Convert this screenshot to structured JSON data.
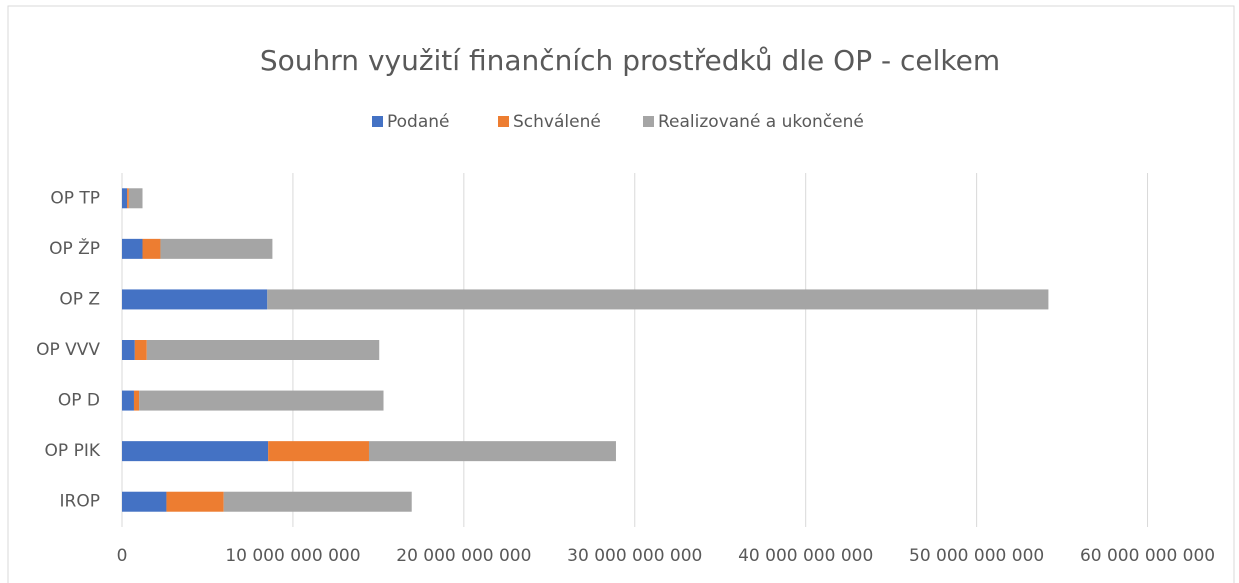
{
  "chart_data": {
    "type": "stacked-barh",
    "title": "Souhrn využití finančních prostředků dle OP - celkem",
    "categories": [
      "OP TP",
      "OP ŽP",
      "OP Z",
      "OP VVV",
      "OP D",
      "OP PIK",
      "IROP"
    ],
    "series": [
      {
        "name": "Podané",
        "color": "#4472c4",
        "values": [
          300000000,
          1200000000,
          8500000000,
          750000000,
          700000000,
          8550000000,
          2600000000
        ]
      },
      {
        "name": "Schválené",
        "color": "#ed7d31",
        "values": [
          100000000,
          1050000000,
          0,
          700000000,
          300000000,
          5900000000,
          3350000000
        ]
      },
      {
        "name": "Realizované a ukončené",
        "color": "#a5a5a5",
        "values": [
          800000000,
          6550000000,
          45700000000,
          13600000000,
          14300000000,
          14450000000,
          11000000000
        ]
      }
    ],
    "xlim": [
      0,
      65000000000
    ],
    "xticks": [
      0,
      {
        "value": 10000000000,
        "label": "10 000 000 000"
      },
      {
        "value": 20000000000,
        "label": "20 000 000 000"
      },
      {
        "value": 30000000000,
        "label": "30 000 000 000"
      },
      {
        "value": 40000000000,
        "label": "40 000 000 000"
      },
      {
        "value": 50000000000,
        "label": "50 000 000 000"
      },
      {
        "value": 60000000000,
        "label": "60 000 000 000"
      }
    ],
    "grid": true,
    "legend": "top"
  }
}
